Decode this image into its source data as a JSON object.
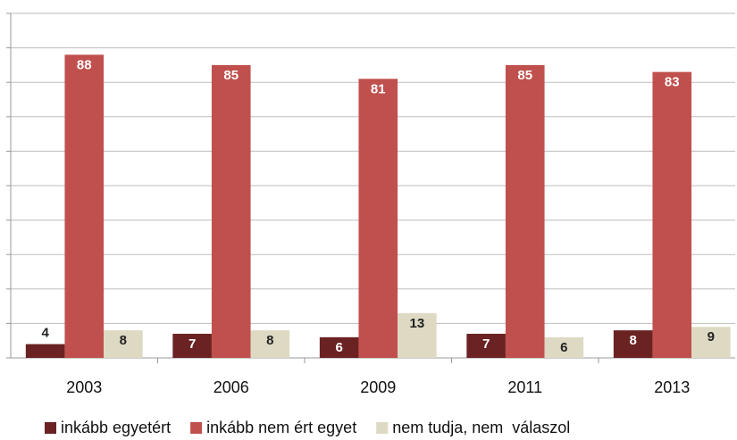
{
  "chart_data": {
    "type": "bar",
    "categories": [
      "2003",
      "2006",
      "2009",
      "2011",
      "2013"
    ],
    "series": [
      {
        "name": "inkább egyetért",
        "color": "#6b2222",
        "values": [
          4,
          7,
          6,
          7,
          8
        ]
      },
      {
        "name": "inkább nem ért egyet",
        "color": "#c0504d",
        "values": [
          88,
          85,
          81,
          85,
          83
        ]
      },
      {
        "name": "nem tudja, nem  válaszol",
        "color": "#ddd9c3",
        "values": [
          8,
          8,
          13,
          6,
          9
        ]
      }
    ],
    "ylim": [
      0,
      100
    ],
    "yticks": [
      0,
      10,
      20,
      30,
      40,
      50,
      60,
      70,
      80,
      90,
      100
    ],
    "grid": true
  }
}
